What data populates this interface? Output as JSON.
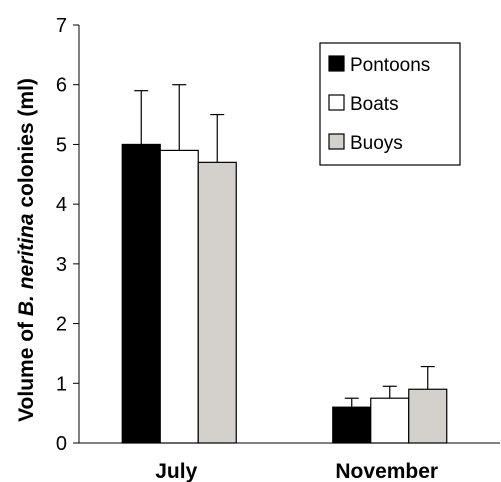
{
  "chart_data": {
    "type": "bar",
    "ylabel_parts": [
      "Volume of ",
      "B. neritina",
      " colonies (ml)"
    ],
    "ylim": [
      0,
      7
    ],
    "yticks": [
      "0",
      "1",
      "2",
      "3",
      "4",
      "5",
      "6",
      "7"
    ],
    "categories": [
      "July",
      "November"
    ],
    "series": [
      {
        "name": "Pontoons",
        "color": "#000000",
        "values": [
          5.0,
          0.6
        ],
        "error": [
          0.9,
          0.15
        ]
      },
      {
        "name": "Boats",
        "color": "#ffffff",
        "values": [
          4.9,
          0.75
        ],
        "error": [
          1.1,
          0.2
        ]
      },
      {
        "name": "Buoys",
        "color": "#d4d0cc",
        "values": [
          4.7,
          0.9
        ],
        "error": [
          0.8,
          0.38
        ]
      }
    ],
    "legend_position": "top-right",
    "grid": false,
    "error_bars": "upper"
  }
}
